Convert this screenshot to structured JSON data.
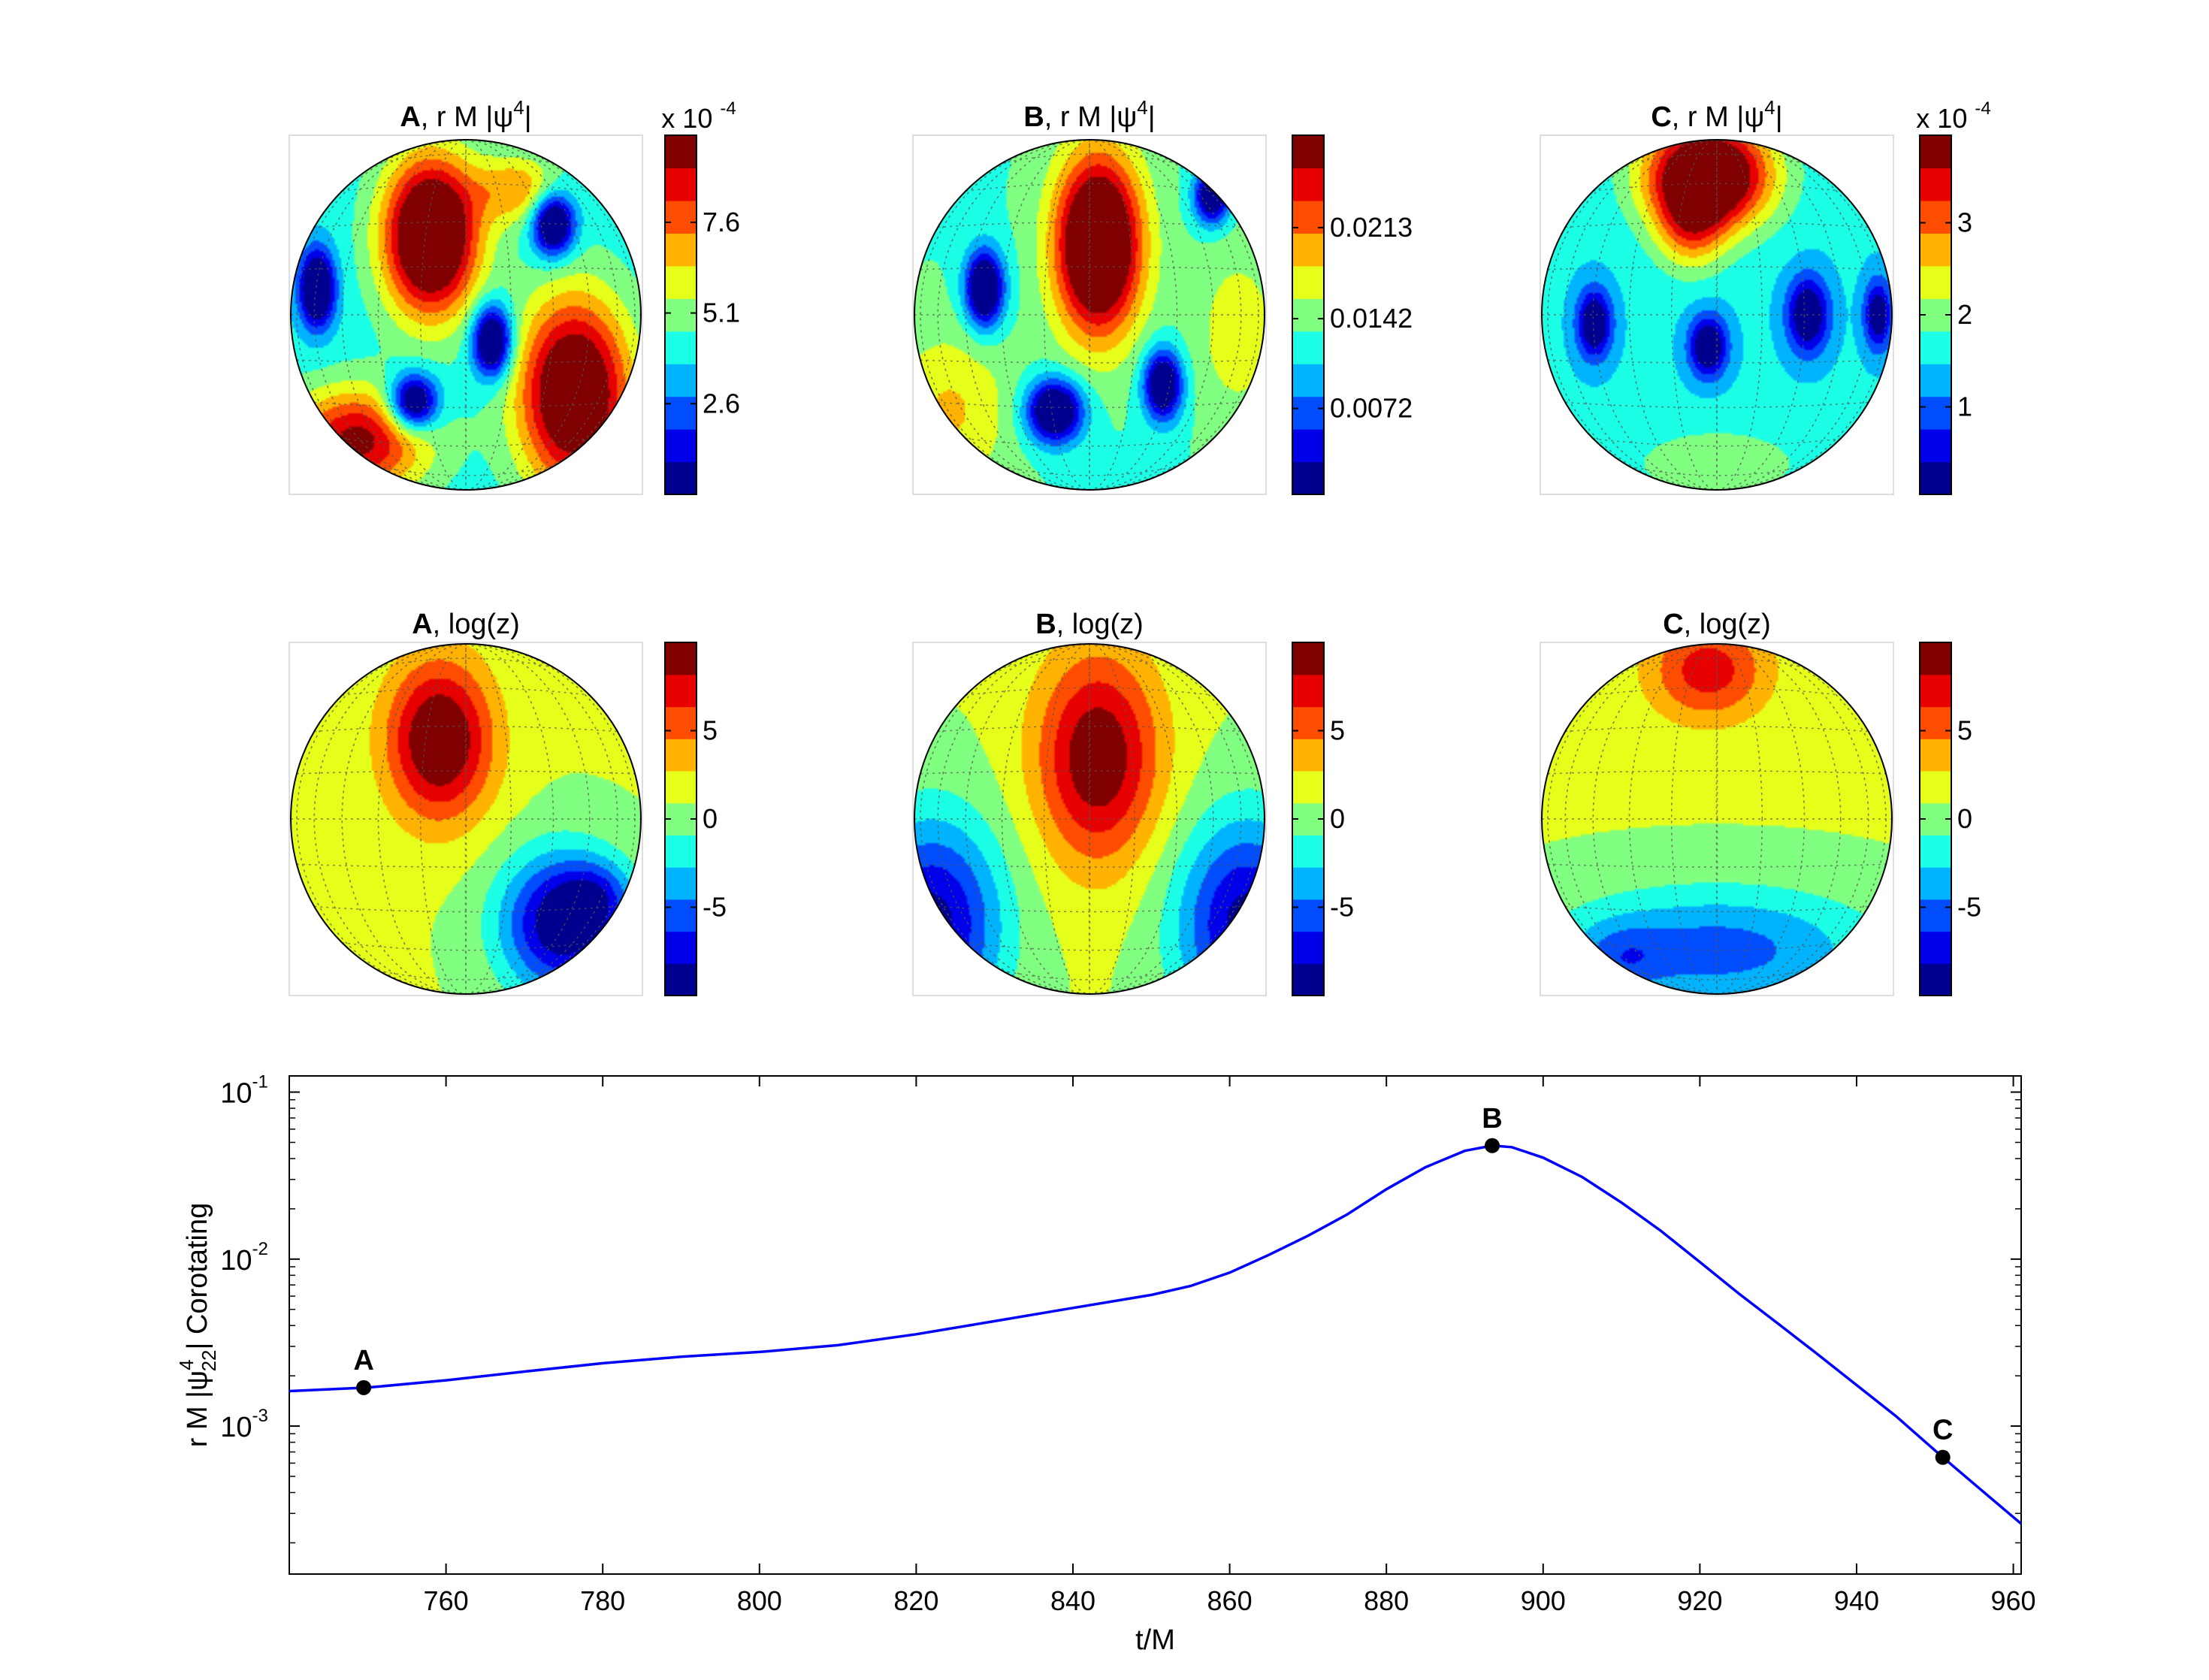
{
  "colormap": [
    "#00008f",
    "#0000ff",
    "#0080ff",
    "#00ffff",
    "#80ff80",
    "#ffff00",
    "#ff8000",
    "#ff0000",
    "#800000"
  ],
  "sphere_plots": [
    {
      "id": "A-psi4",
      "title_bold": "A",
      "title_rest": ", r M |ψ",
      "title_sup": "4",
      "title_end": "|",
      "colorbar": {
        "multiplier_base": "x 10",
        "multiplier_exp": "-4",
        "min": 0.1,
        "max": 10.0,
        "ticks": [
          2.6,
          5.1,
          7.6
        ],
        "tick_labels": [
          "2.6",
          "5.1",
          "7.6"
        ]
      },
      "blobs": [
        {
          "u": -0.2,
          "v": -0.45,
          "rx": 0.27,
          "ry": 0.45,
          "w": 0.85
        },
        {
          "u": 0.62,
          "v": 0.45,
          "rx": 0.32,
          "ry": 0.55,
          "w": 0.75
        },
        {
          "u": -0.62,
          "v": 0.72,
          "rx": 0.4,
          "ry": 0.3,
          "w": 0.55
        },
        {
          "u": 0.3,
          "v": -0.72,
          "rx": 0.25,
          "ry": 0.2,
          "w": 0.3
        },
        {
          "u": 0.5,
          "v": -0.52,
          "rx": 0.12,
          "ry": 0.18,
          "w": -0.6
        },
        {
          "u": -0.85,
          "v": -0.15,
          "rx": 0.1,
          "ry": 0.22,
          "w": -0.6
        },
        {
          "u": 0.15,
          "v": 0.15,
          "rx": 0.11,
          "ry": 0.2,
          "w": -0.62
        },
        {
          "u": -0.3,
          "v": 0.5,
          "rx": 0.14,
          "ry": 0.16,
          "w": -0.6
        }
      ],
      "base_level": 0.4
    },
    {
      "id": "B-psi4",
      "title_bold": "B",
      "title_rest": ", r M |ψ",
      "title_sup": "4",
      "title_end": "|",
      "colorbar": {
        "multiplier_base": "",
        "multiplier_exp": "",
        "min": 0.0005,
        "max": 0.0285,
        "ticks": [
          0.0072,
          0.0142,
          0.0213
        ],
        "tick_labels": [
          "0.0072",
          "0.0142",
          "0.0213"
        ]
      },
      "blobs": [
        {
          "u": 0.05,
          "v": -0.4,
          "rx": 0.24,
          "ry": 0.5,
          "w": 0.85
        },
        {
          "u": -0.8,
          "v": 0.55,
          "rx": 0.35,
          "ry": 0.45,
          "w": 0.2
        },
        {
          "u": 0.85,
          "v": 0.1,
          "rx": 0.25,
          "ry": 0.5,
          "w": 0.15
        },
        {
          "u": -0.6,
          "v": -0.15,
          "rx": 0.11,
          "ry": 0.22,
          "w": -0.62
        },
        {
          "u": 0.7,
          "v": -0.68,
          "rx": 0.1,
          "ry": 0.16,
          "w": -0.55
        },
        {
          "u": -0.2,
          "v": 0.55,
          "rx": 0.16,
          "ry": 0.18,
          "w": -0.62
        },
        {
          "u": 0.42,
          "v": 0.4,
          "rx": 0.11,
          "ry": 0.2,
          "w": -0.58
        }
      ],
      "base_level": 0.45
    },
    {
      "id": "C-psi4",
      "title_bold": "C",
      "title_rest": ", r M |ψ",
      "title_sup": "4",
      "title_end": "|",
      "colorbar": {
        "multiplier_base": "x 10",
        "multiplier_exp": "-4",
        "min": 0.05,
        "max": 3.95,
        "ticks": [
          1,
          2,
          3
        ],
        "tick_labels": [
          "1",
          "2",
          "3"
        ]
      },
      "blobs": [
        {
          "u": -0.05,
          "v": -0.8,
          "rx": 0.35,
          "ry": 0.3,
          "w": 0.85
        },
        {
          "u": -0.15,
          "v": -0.5,
          "rx": 0.2,
          "ry": 0.25,
          "w": 0.3
        },
        {
          "u": 0.0,
          "v": 0.85,
          "rx": 0.6,
          "ry": 0.25,
          "w": 0.12
        },
        {
          "u": -0.7,
          "v": 0.05,
          "rx": 0.1,
          "ry": 0.2,
          "w": -0.45
        },
        {
          "u": -0.05,
          "v": 0.18,
          "rx": 0.11,
          "ry": 0.18,
          "w": -0.45
        },
        {
          "u": 0.52,
          "v": 0.0,
          "rx": 0.12,
          "ry": 0.22,
          "w": -0.45
        },
        {
          "u": 0.92,
          "v": 0.0,
          "rx": 0.08,
          "ry": 0.2,
          "w": -0.4
        }
      ],
      "base_level": 0.38
    },
    {
      "id": "A-logz",
      "title_bold": "A",
      "title_rest": ", log(z)",
      "title_sup": "",
      "title_end": "",
      "colorbar": {
        "multiplier_base": "",
        "multiplier_exp": "",
        "min": -10,
        "max": 10,
        "ticks": [
          -5,
          0,
          5
        ],
        "tick_labels": [
          "-5",
          "0",
          "5"
        ]
      },
      "blobs": [
        {
          "u": -0.15,
          "v": -0.45,
          "rx": 0.3,
          "ry": 0.45,
          "w": 0.5
        },
        {
          "u": 0.55,
          "v": 0.6,
          "rx": 0.35,
          "ry": 0.4,
          "w": -0.55
        },
        {
          "u": 0.75,
          "v": 0.45,
          "rx": 0.2,
          "ry": 0.2,
          "w": -0.2
        }
      ],
      "base_level": 0.55
    },
    {
      "id": "B-logz",
      "title_bold": "B",
      "title_rest": ", log(z)",
      "title_sup": "",
      "title_end": "",
      "colorbar": {
        "multiplier_base": "",
        "multiplier_exp": "",
        "min": -10,
        "max": 10,
        "ticks": [
          -5,
          0,
          5
        ],
        "tick_labels": [
          "-5",
          "0",
          "5"
        ]
      },
      "blobs": [
        {
          "u": 0.05,
          "v": -0.35,
          "rx": 0.35,
          "ry": 0.6,
          "w": 0.45
        },
        {
          "u": -0.9,
          "v": 0.6,
          "rx": 0.4,
          "ry": 0.6,
          "w": -0.5
        },
        {
          "u": 0.9,
          "v": 0.6,
          "rx": 0.4,
          "ry": 0.6,
          "w": -0.5
        }
      ],
      "base_level": 0.55
    },
    {
      "id": "C-logz",
      "title_bold": "C",
      "title_rest": ", log(z)",
      "title_sup": "",
      "title_end": "",
      "colorbar": {
        "multiplier_base": "",
        "multiplier_exp": "",
        "min": -10,
        "max": 10,
        "ticks": [
          -5,
          0,
          5
        ],
        "tick_labels": [
          "-5",
          "0",
          "5"
        ]
      },
      "blobs": [
        {
          "u": -0.05,
          "v": -0.85,
          "rx": 0.35,
          "ry": 0.3,
          "w": 0.32
        },
        {
          "u": 0.0,
          "v": 0.75,
          "rx": 0.9,
          "ry": 0.35,
          "w": -0.32
        },
        {
          "u": -0.55,
          "v": 0.8,
          "rx": 0.25,
          "ry": 0.2,
          "w": -0.15
        }
      ],
      "base_level": 0.55
    }
  ],
  "chart_data": {
    "type": "line",
    "xlabel": "t/M",
    "ylabel_prefix": "r M |ψ",
    "ylabel_sup": "4",
    "ylabel_sub": "22",
    "ylabel_suffix": "| Corotating",
    "yscale": "log",
    "xlim": [
      740,
      961
    ],
    "ylim": [
      0.00013,
      0.125
    ],
    "xticks": [
      760,
      780,
      800,
      820,
      840,
      860,
      880,
      900,
      920,
      940,
      960
    ],
    "yticks": [
      {
        "value": 0.001,
        "base": "10",
        "exp": "-3"
      },
      {
        "value": 0.01,
        "base": "10",
        "exp": "-2"
      },
      {
        "value": 0.1,
        "base": "10",
        "exp": "-1"
      }
    ],
    "series": [
      {
        "color": "#0000ff",
        "x": [
          740,
          750,
          760,
          770,
          780,
          790,
          800,
          810,
          820,
          830,
          840,
          850,
          855,
          860,
          865,
          870,
          875,
          880,
          885,
          890,
          893.5,
          896,
          900,
          905,
          910,
          915,
          920,
          925,
          930,
          935,
          940,
          945,
          951,
          955,
          961
        ],
        "y": [
          0.00162,
          0.0017,
          0.00188,
          0.00212,
          0.00238,
          0.0026,
          0.00278,
          0.00305,
          0.00355,
          0.00425,
          0.0051,
          0.0061,
          0.0069,
          0.0083,
          0.0106,
          0.0138,
          0.0185,
          0.0262,
          0.0355,
          0.0445,
          0.0478,
          0.0468,
          0.0405,
          0.031,
          0.0218,
          0.0148,
          0.0096,
          0.0062,
          0.0041,
          0.0027,
          0.00176,
          0.00115,
          0.00065,
          0.00045,
          0.00026
        ]
      }
    ],
    "markers": [
      {
        "label": "A",
        "x": 749.5,
        "y": 0.0017
      },
      {
        "label": "B",
        "x": 893.5,
        "y": 0.0478
      },
      {
        "label": "C",
        "x": 951,
        "y": 0.00065
      }
    ]
  }
}
